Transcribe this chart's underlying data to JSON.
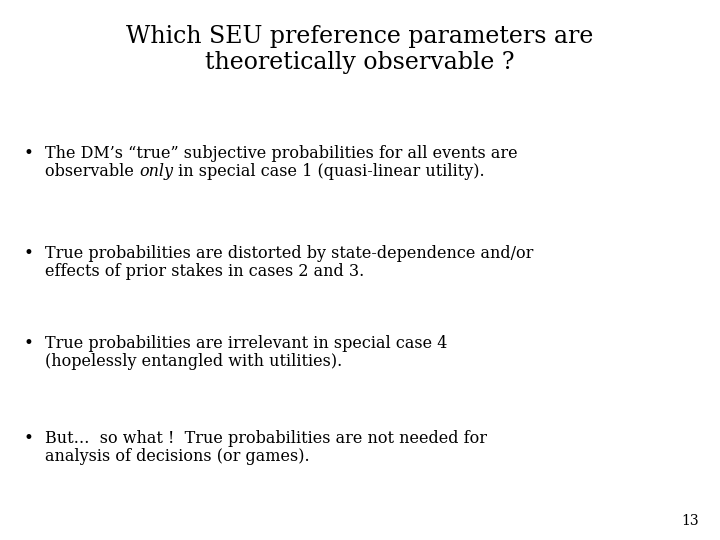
{
  "background_color": "#ffffff",
  "title_line1": "Which SEU preference parameters are",
  "title_line2": "theoretically observable ?",
  "title_fontsize": 17,
  "title_font": "serif",
  "title_color": "#000000",
  "bullet_font": "serif",
  "bullet_fontsize": 11.5,
  "bullet_color": "#000000",
  "page_number": "13",
  "page_number_fontsize": 10,
  "bullets": [
    {
      "segments": [
        [
          {
            "text": "The DM’s “true” subjective probabilities for all events are",
            "italic": false
          },
          {
            "newline": true
          },
          {
            "text": "observable ",
            "italic": false
          },
          {
            "text": "only",
            "italic": true
          },
          {
            "text": " in special case 1 (quasi-linear utility).",
            "italic": false
          }
        ]
      ]
    },
    {
      "segments": [
        [
          {
            "text": "True probabilities are distorted by state-dependence and/or",
            "italic": false
          },
          {
            "newline": true
          },
          {
            "text": "effects of prior stakes in cases 2 and 3.",
            "italic": false
          }
        ]
      ]
    },
    {
      "segments": [
        [
          {
            "text": "True probabilities are irrelevant in special case 4",
            "italic": false
          },
          {
            "newline": true
          },
          {
            "text": "(hopelessly entangled with utilities).",
            "italic": false
          }
        ]
      ]
    },
    {
      "segments": [
        [
          {
            "text": "But…  so what !  True probabilities are not needed for",
            "italic": false
          },
          {
            "newline": true
          },
          {
            "text": "analysis of decisions (or games).",
            "italic": false
          }
        ]
      ]
    }
  ]
}
